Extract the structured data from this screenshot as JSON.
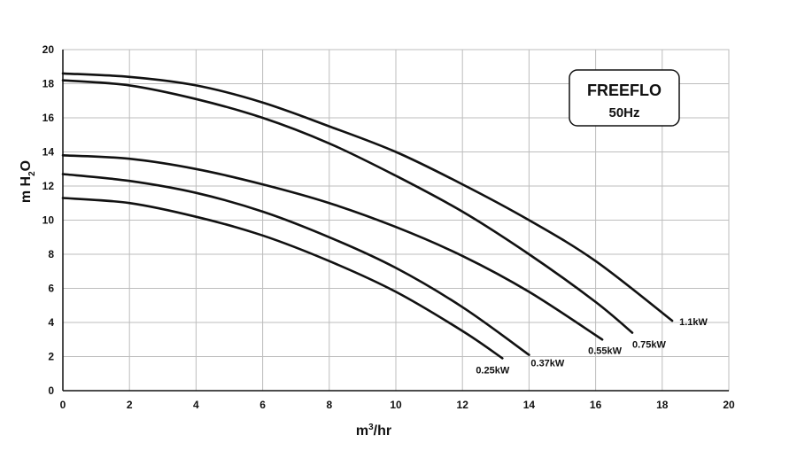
{
  "chart_data": {
    "type": "line",
    "xlabel": "m3/hr",
    "ylabel": "m H2O",
    "xlim": [
      0,
      20
    ],
    "ylim": [
      0,
      20
    ],
    "x_ticks": [
      "0",
      "2",
      "4",
      "6",
      "8",
      "10",
      "12",
      "14",
      "16",
      "18",
      "20"
    ],
    "y_ticks": [
      "0",
      "2",
      "4",
      "6",
      "8",
      "10",
      "12",
      "14",
      "16",
      "18",
      "20"
    ],
    "grid": true,
    "annotation_box": {
      "title": "FREEFLO",
      "subtitle": "50Hz"
    },
    "series": [
      {
        "name": "1.1kW",
        "points": [
          [
            0,
            18.6
          ],
          [
            2,
            18.4
          ],
          [
            4,
            17.9
          ],
          [
            6,
            16.9
          ],
          [
            8,
            15.5
          ],
          [
            10,
            14.0
          ],
          [
            12,
            12.1
          ],
          [
            14,
            10.0
          ],
          [
            16,
            7.6
          ],
          [
            18.3,
            4.1
          ]
        ]
      },
      {
        "name": "0.75kW",
        "points": [
          [
            0,
            18.2
          ],
          [
            2,
            17.9
          ],
          [
            4,
            17.1
          ],
          [
            6,
            16.0
          ],
          [
            8,
            14.5
          ],
          [
            10,
            12.6
          ],
          [
            12,
            10.5
          ],
          [
            14,
            8.0
          ],
          [
            16,
            5.2
          ],
          [
            17.1,
            3.4
          ]
        ]
      },
      {
        "name": "0.55kW",
        "points": [
          [
            0,
            13.8
          ],
          [
            2,
            13.6
          ],
          [
            4,
            13.0
          ],
          [
            6,
            12.1
          ],
          [
            8,
            11.0
          ],
          [
            10,
            9.6
          ],
          [
            12,
            7.9
          ],
          [
            14,
            5.8
          ],
          [
            16.2,
            3.0
          ]
        ]
      },
      {
        "name": "0.37kW",
        "points": [
          [
            0,
            12.7
          ],
          [
            2,
            12.3
          ],
          [
            4,
            11.6
          ],
          [
            6,
            10.5
          ],
          [
            8,
            9.0
          ],
          [
            10,
            7.2
          ],
          [
            12,
            4.9
          ],
          [
            14,
            2.1
          ]
        ]
      },
      {
        "name": "0.25kW",
        "points": [
          [
            0,
            11.3
          ],
          [
            2,
            11.0
          ],
          [
            4,
            10.2
          ],
          [
            6,
            9.1
          ],
          [
            8,
            7.6
          ],
          [
            10,
            5.8
          ],
          [
            12,
            3.5
          ],
          [
            13.2,
            1.9
          ]
        ]
      }
    ]
  }
}
